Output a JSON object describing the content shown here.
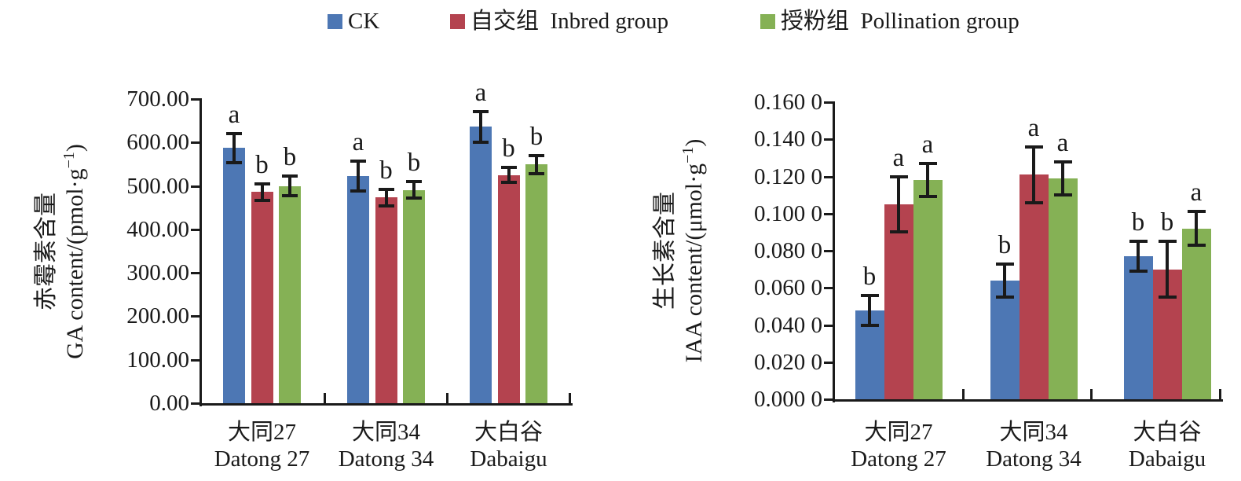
{
  "figure": {
    "background": "#ffffff",
    "axis_color": "#1a1a1a"
  },
  "legend": {
    "items": [
      {
        "key": "ck",
        "label": "CK",
        "color": "#4d77b4"
      },
      {
        "key": "inbred-group",
        "label": "自交组  Inbred group",
        "color": "#b4434f"
      },
      {
        "key": "pollination-group",
        "label": "授粉组  Pollination group",
        "color": "#85b155"
      }
    ]
  },
  "chart_data": [
    {
      "key": "ga-chart",
      "type": "bar",
      "title": "",
      "ylabel_zh": "赤霉素含量",
      "ylabel_en_prefix": "GA content/(pmol·g",
      "ylabel_en_sup": "−1",
      "ylabel_en_suffix": ")",
      "ylim": [
        0,
        700
      ],
      "grid": false,
      "legend_position": "top-shared",
      "ytick_labels": [
        "0.00",
        "100.00",
        "200.00",
        "300.00",
        "400.00",
        "500.00",
        "600.00",
        "700.00"
      ],
      "categories_zh": [
        "大同27",
        "大同34",
        "大白谷"
      ],
      "categories_en": [
        "Datong 27",
        "Datong 34",
        "Dabaigu"
      ],
      "category_keys": [
        "datong27",
        "datong34",
        "dabaigu"
      ],
      "series": [
        {
          "key": "ck",
          "name": "CK",
          "color": "#4d77b4",
          "values": [
            587,
            523,
            636
          ],
          "errors": [
            33,
            35,
            35
          ],
          "letters": [
            "a",
            "a",
            "a"
          ]
        },
        {
          "key": "inbred",
          "name": "自交组 Inbred group",
          "color": "#b4434f",
          "values": [
            486,
            473,
            525
          ],
          "errors": [
            19,
            19,
            17
          ],
          "letters": [
            "b",
            "b",
            "b"
          ]
        },
        {
          "key": "pollination",
          "name": "授粉组 Pollination group",
          "color": "#85b155",
          "values": [
            500,
            491,
            549
          ],
          "errors": [
            22,
            19,
            21
          ],
          "letters": [
            "b",
            "b",
            "b"
          ]
        }
      ]
    },
    {
      "key": "iaa-chart",
      "type": "bar",
      "title": "",
      "ylabel_zh": "生长素含量",
      "ylabel_en_prefix": "IAA content/(μmol·g",
      "ylabel_en_sup": "−1",
      "ylabel_en_suffix": ")",
      "ylim": [
        0,
        0.16
      ],
      "grid": false,
      "legend_position": "top-shared",
      "ytick_labels": [
        "0.000 0",
        "0.020 0",
        "0.040 0",
        "0.060 0",
        "0.080 0",
        "0.100 0",
        "0.120 0",
        "0.140 0",
        "0.160 0"
      ],
      "categories_zh": [
        "大同27",
        "大同34",
        "大白谷"
      ],
      "categories_en": [
        "Datong 27",
        "Datong 34",
        "Dabaigu"
      ],
      "category_keys": [
        "datong27",
        "datong34",
        "dabaigu"
      ],
      "series": [
        {
          "key": "ck",
          "name": "CK",
          "color": "#4d77b4",
          "values": [
            0.048,
            0.064,
            0.077
          ],
          "errors": [
            0.008,
            0.009,
            0.008
          ],
          "letters": [
            "b",
            "b",
            "b"
          ]
        },
        {
          "key": "inbred",
          "name": "自交组 Inbred group",
          "color": "#b4434f",
          "values": [
            0.105,
            0.121,
            0.07
          ],
          "errors": [
            0.015,
            0.015,
            0.015
          ],
          "letters": [
            "a",
            "a",
            "b"
          ]
        },
        {
          "key": "pollination",
          "name": "授粉组 Pollination group",
          "color": "#85b155",
          "values": [
            0.118,
            0.119,
            0.092
          ],
          "errors": [
            0.009,
            0.009,
            0.009
          ],
          "letters": [
            "a",
            "a",
            "a"
          ]
        }
      ]
    }
  ]
}
